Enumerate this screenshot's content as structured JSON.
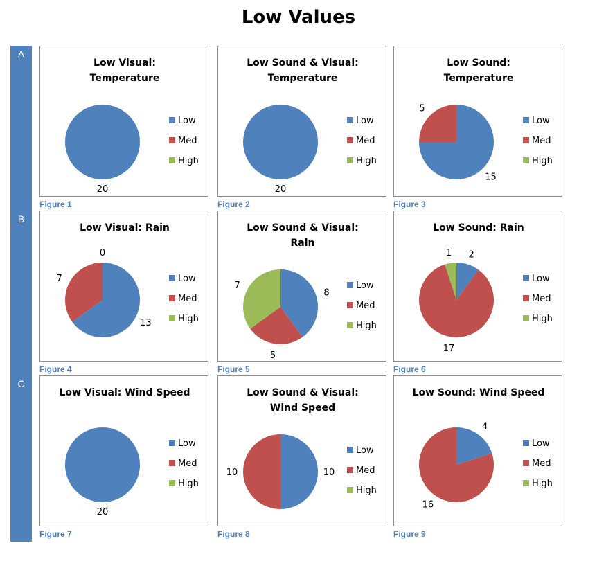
{
  "page": {
    "title": "Low Values"
  },
  "rows": [
    "A",
    "B",
    "C"
  ],
  "colors": {
    "Low": "#4f81bd",
    "Med": "#c0504d",
    "High": "#9bbb59",
    "caption": "#4f81bd",
    "sidebar": "#4f81bd"
  },
  "chart_data": [
    {
      "type": "pie",
      "figure": "Figure 1",
      "title": [
        "Low Visual:",
        "Temperature"
      ],
      "categories": [
        "Low",
        "Med",
        "High"
      ],
      "values": [
        20,
        0,
        0
      ],
      "labels": [
        "20",
        null,
        null
      ]
    },
    {
      "type": "pie",
      "figure": "Figure 2",
      "title": [
        "Low Sound & Visual:",
        "Temperature"
      ],
      "categories": [
        "Low",
        "Med",
        "High"
      ],
      "values": [
        20,
        0,
        0
      ],
      "labels": [
        "20",
        null,
        null
      ]
    },
    {
      "type": "pie",
      "figure": "Figure 3",
      "title": [
        "Low Sound:",
        "Temperature"
      ],
      "categories": [
        "Low",
        "Med",
        "High"
      ],
      "values": [
        15,
        5,
        0
      ],
      "labels": [
        "15",
        "5",
        null
      ]
    },
    {
      "type": "pie",
      "figure": "Figure 4",
      "title": [
        "Low Visual: Rain"
      ],
      "categories": [
        "Low",
        "Med",
        "High"
      ],
      "values": [
        13,
        7,
        0
      ],
      "labels": [
        "13",
        "7",
        "0"
      ]
    },
    {
      "type": "pie",
      "figure": "Figure 5",
      "title": [
        "Low Sound & Visual:",
        "Rain"
      ],
      "categories": [
        "Low",
        "Med",
        "High"
      ],
      "values": [
        8,
        5,
        7
      ],
      "labels": [
        "8",
        "5",
        "7"
      ]
    },
    {
      "type": "pie",
      "figure": "Figure 6",
      "title": [
        "Low Sound: Rain"
      ],
      "categories": [
        "Low",
        "Med",
        "High"
      ],
      "values": [
        2,
        17,
        1
      ],
      "labels": [
        "2",
        "17",
        "1"
      ]
    },
    {
      "type": "pie",
      "figure": "Figure 7",
      "title": [
        "Low Visual: Wind Speed"
      ],
      "categories": [
        "Low",
        "Med",
        "High"
      ],
      "values": [
        20,
        0,
        0
      ],
      "labels": [
        "20",
        null,
        null
      ]
    },
    {
      "type": "pie",
      "figure": "Figure 8",
      "title": [
        "Low Sound & Visual:",
        "Wind Speed"
      ],
      "categories": [
        "Low",
        "Med",
        "High"
      ],
      "values": [
        10,
        10,
        0
      ],
      "labels": [
        "10",
        "10",
        null
      ]
    },
    {
      "type": "pie",
      "figure": "Figure 9",
      "title": [
        "Low Sound: Wind Speed"
      ],
      "categories": [
        "Low",
        "Med",
        "High"
      ],
      "values": [
        4,
        16,
        0
      ],
      "labels": [
        "4",
        "16",
        null
      ]
    }
  ]
}
